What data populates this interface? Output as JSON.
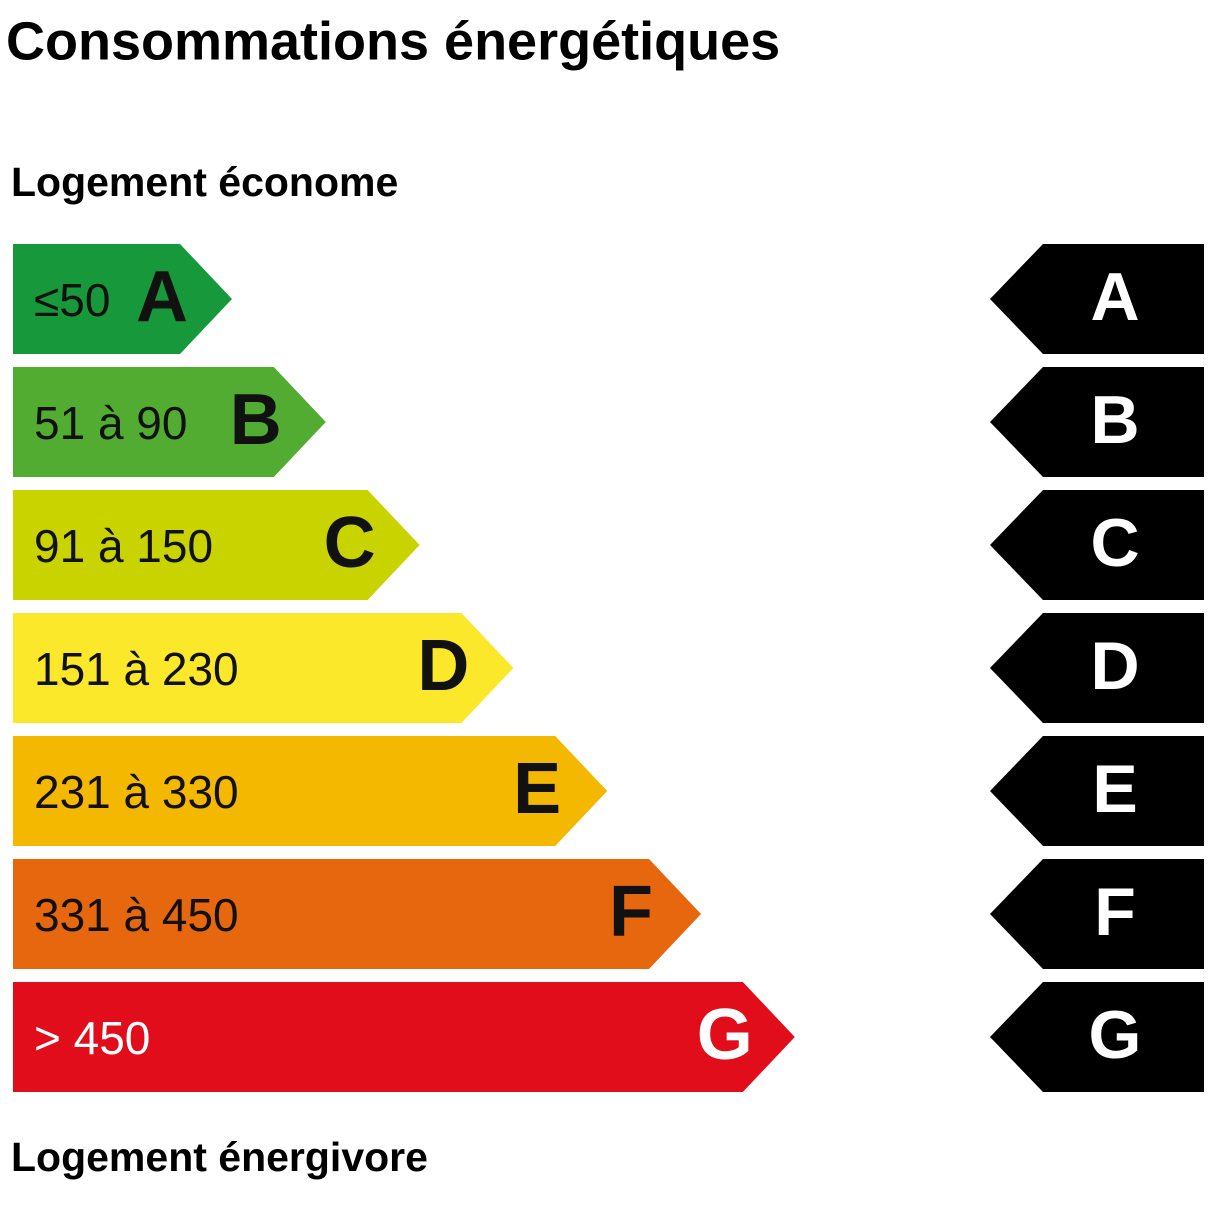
{
  "title": "Consommations énergétiques",
  "top_label": "Logement économe",
  "bottom_label": "Logement énergivore",
  "classes": [
    {
      "range": "≤50",
      "letter": "A",
      "color": "#17993b",
      "text_color": "#111111"
    },
    {
      "range": "51 à 90",
      "letter": "B",
      "color": "#53ac32",
      "text_color": "#111111"
    },
    {
      "range": "91 à 150",
      "letter": "C",
      "color": "#c8d300",
      "text_color": "#111111"
    },
    {
      "range": "151 à 230",
      "letter": "D",
      "color": "#fbe82b",
      "text_color": "#111111"
    },
    {
      "range": "231 à 330",
      "letter": "E",
      "color": "#f5b800",
      "text_color": "#111111"
    },
    {
      "range": "331 à 450",
      "letter": "F",
      "color": "#e7670f",
      "text_color": "#111111"
    },
    {
      "range": "> 450",
      "letter": "G",
      "color": "#e10d1b",
      "text_color": "#ffffff"
    }
  ]
}
